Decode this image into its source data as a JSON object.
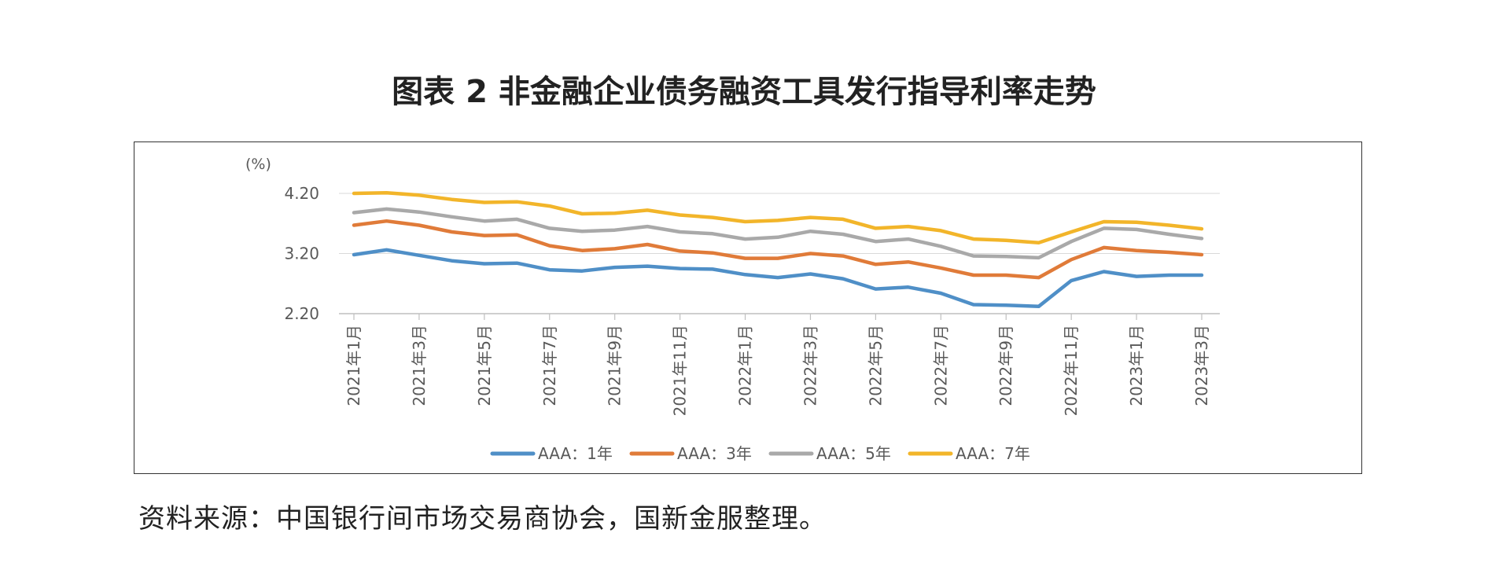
{
  "page": {
    "title": "图表 2  非金融企业债务融资工具发行指导利率走势",
    "source": "资料来源：中国银行间市场交易商协会，国新金服整理。"
  },
  "chart_data": {
    "type": "line",
    "unit_label": "(%)",
    "ylim": [
      2.2,
      4.2
    ],
    "yticks": [
      "4.20",
      "3.20",
      "2.20"
    ],
    "grid": true,
    "legend_position": "bottom",
    "x": [
      "2021年1月",
      "2021年2月",
      "2021年3月",
      "2021年4月",
      "2021年5月",
      "2021年6月",
      "2021年7月",
      "2021年8月",
      "2021年9月",
      "2021年10月",
      "2021年11月",
      "2021年12月",
      "2022年1月",
      "2022年2月",
      "2022年3月",
      "2022年4月",
      "2022年5月",
      "2022年6月",
      "2022年7月",
      "2022年8月",
      "2022年9月",
      "2022年10月",
      "2022年11月",
      "2022年12月",
      "2023年1月",
      "2023年2月",
      "2023年3月"
    ],
    "xtick_labels": [
      "2021年1月",
      "2021年3月",
      "2021年5月",
      "2021年7月",
      "2021年9月",
      "2021年11月",
      "2022年1月",
      "2022年3月",
      "2022年5月",
      "2022年7月",
      "2022年9月",
      "2022年11月",
      "2023年1月",
      "2023年3月"
    ],
    "series": [
      {
        "name": "AAA：1年",
        "color": "#4F8FC7",
        "values": [
          3.18,
          3.26,
          3.17,
          3.08,
          3.03,
          3.04,
          2.93,
          2.91,
          2.97,
          2.99,
          2.95,
          2.94,
          2.85,
          2.8,
          2.86,
          2.78,
          2.61,
          2.64,
          2.54,
          2.35,
          2.34,
          2.32,
          2.75,
          2.9,
          2.82,
          2.84,
          2.84
        ]
      },
      {
        "name": "AAA：3年",
        "color": "#E07B39",
        "values": [
          3.67,
          3.74,
          3.67,
          3.56,
          3.5,
          3.51,
          3.33,
          3.25,
          3.28,
          3.35,
          3.24,
          3.21,
          3.12,
          3.12,
          3.2,
          3.16,
          3.02,
          3.06,
          2.96,
          2.84,
          2.84,
          2.8,
          3.1,
          3.3,
          3.25,
          3.22,
          3.18
        ]
      },
      {
        "name": "AAA：5年",
        "color": "#A9A9A9",
        "values": [
          3.88,
          3.94,
          3.89,
          3.81,
          3.74,
          3.77,
          3.62,
          3.57,
          3.59,
          3.65,
          3.56,
          3.53,
          3.44,
          3.47,
          3.57,
          3.52,
          3.4,
          3.44,
          3.32,
          3.16,
          3.15,
          3.13,
          3.4,
          3.62,
          3.6,
          3.52,
          3.45
        ]
      },
      {
        "name": "AAA：7年",
        "color": "#F2B52A",
        "values": [
          4.2,
          4.21,
          4.17,
          4.1,
          4.05,
          4.06,
          3.99,
          3.86,
          3.87,
          3.92,
          3.84,
          3.8,
          3.73,
          3.75,
          3.8,
          3.77,
          3.62,
          3.65,
          3.58,
          3.44,
          3.42,
          3.38,
          3.56,
          3.73,
          3.72,
          3.67,
          3.61
        ]
      }
    ]
  }
}
